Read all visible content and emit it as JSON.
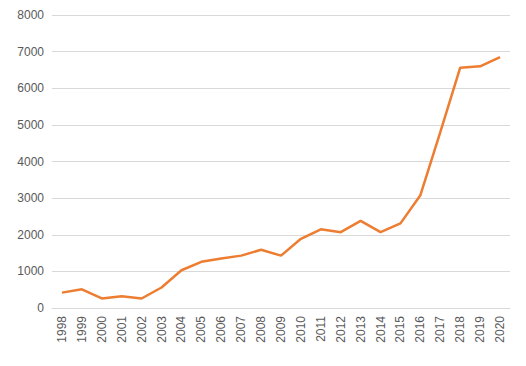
{
  "chart_data": {
    "type": "line",
    "categories": [
      "1998",
      "1999",
      "2000",
      "2001",
      "2002",
      "2003",
      "2004",
      "2005",
      "2006",
      "2007",
      "2008",
      "2009",
      "2010",
      "2011",
      "2012",
      "2013",
      "2014",
      "2015",
      "2016",
      "2017",
      "2018",
      "2019",
      "2020"
    ],
    "values": [
      420,
      510,
      260,
      320,
      260,
      560,
      1030,
      1260,
      1350,
      1430,
      1590,
      1430,
      1890,
      2150,
      2070,
      2380,
      2070,
      2310,
      3080,
      4800,
      6560,
      6600,
      6850
    ],
    "color": "#ed7d31",
    "ylim": [
      0,
      8000
    ],
    "yticks": [
      0,
      1000,
      2000,
      3000,
      4000,
      5000,
      6000,
      7000,
      8000
    ],
    "grid": true
  }
}
